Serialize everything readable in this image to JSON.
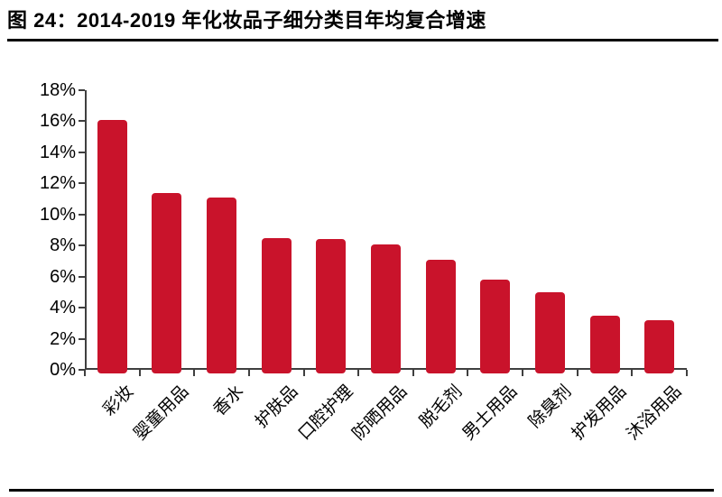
{
  "figure": {
    "title": "图 24：2014-2019 年化妆品子细分类目年均复合增速"
  },
  "chart_data": {
    "type": "bar",
    "title": "2014-2019 年化妆品子细分类目年均复合增速",
    "categories": [
      "彩妆",
      "婴童用品",
      "香水",
      "护肤品",
      "口腔护理",
      "防晒用品",
      "脱毛剂",
      "男士用品",
      "除臭剂",
      "护发用品",
      "沐浴用品"
    ],
    "values": [
      16.1,
      11.4,
      11.1,
      8.5,
      8.4,
      8.1,
      7.1,
      5.8,
      5.0,
      3.5,
      3.2
    ],
    "unit": "%",
    "xlabel": "",
    "ylabel": "",
    "ylim": [
      0,
      18
    ],
    "ytick_step": 2,
    "ytick_labels": [
      "0%",
      "2%",
      "4%",
      "6%",
      "8%",
      "10%",
      "12%",
      "14%",
      "16%",
      "18%"
    ],
    "grid": false,
    "legend": false,
    "bar_color": "#C9132B",
    "axis_color": "#3f3f3f",
    "text_color": "#000000"
  }
}
